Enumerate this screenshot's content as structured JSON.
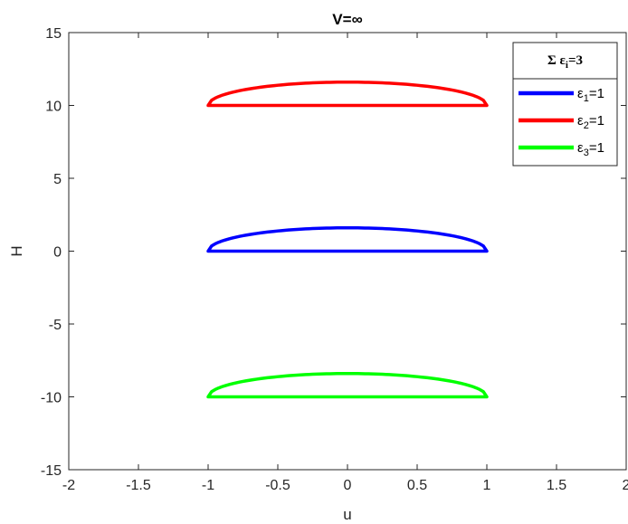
{
  "chart_data": {
    "type": "line",
    "title": "V=∞",
    "xlabel": "u",
    "ylabel": "H",
    "xlim": [
      -2,
      2
    ],
    "ylim": [
      -15,
      15
    ],
    "xticks": [
      "-2",
      "-1.5",
      "-1",
      "-0.5",
      "0",
      "0.5",
      "1",
      "1.5",
      "2"
    ],
    "yticks": [
      "-15",
      "-10",
      "-5",
      "0",
      "5",
      "10",
      "15"
    ],
    "grid": false,
    "legend": {
      "placement": "top-right",
      "title": {
        "prefix": "Σ ε",
        "sub": "i",
        "suffix": "=3"
      }
    },
    "series": [
      {
        "name": {
          "prefix": "ε",
          "sub": "1",
          "suffix": "=1"
        },
        "color": "#0000ff",
        "baseline": 0,
        "height": 1.6,
        "xrange": [
          -1,
          1
        ]
      },
      {
        "name": {
          "prefix": "ε",
          "sub": "2",
          "suffix": "=1"
        },
        "color": "#ff0000",
        "baseline": 10,
        "height": 1.6,
        "xrange": [
          -1,
          1
        ]
      },
      {
        "name": {
          "prefix": "ε",
          "sub": "3",
          "suffix": "=1"
        },
        "color": "#00ff00",
        "baseline": -10,
        "height": 1.6,
        "xrange": [
          -1,
          1
        ]
      }
    ]
  }
}
